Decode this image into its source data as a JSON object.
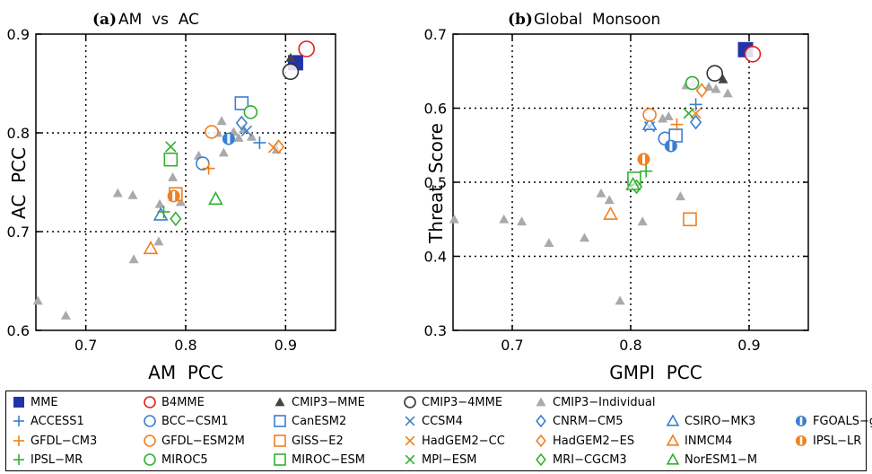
{
  "models": [
    {
      "name": "MME",
      "marker": "square-filled",
      "color": "#2233aa"
    },
    {
      "name": "B4MME",
      "marker": "circle",
      "color": "#e02020"
    },
    {
      "name": "CMIP3−MME",
      "marker": "triangle-filled",
      "color": "#444444"
    },
    {
      "name": "CMIP3−4MME",
      "marker": "circle",
      "color": "#333333"
    },
    {
      "name": "CMIP3−Individual",
      "marker": "triangle-filled",
      "color": "#aaaaaa"
    },
    {
      "name": "ACCESS1",
      "marker": "plus",
      "color": "#3a7fd0"
    },
    {
      "name": "BCC−CSM1",
      "marker": "circle",
      "color": "#3a7fd0"
    },
    {
      "name": "CanESM2",
      "marker": "square",
      "color": "#3a7fd0"
    },
    {
      "name": "CCSM4",
      "marker": "cross",
      "color": "#3a7fd0"
    },
    {
      "name": "CNRM−CM5",
      "marker": "diamond",
      "color": "#3a7fd0"
    },
    {
      "name": "CSIRO−MK3",
      "marker": "triangle",
      "color": "#3a7fd0"
    },
    {
      "name": "FGOALS−g2",
      "marker": "halfcircle",
      "color": "#3a7fd0"
    },
    {
      "name": "GFDL−CM3",
      "marker": "plus",
      "color": "#f08020"
    },
    {
      "name": "GFDL−ESM2M",
      "marker": "circle",
      "color": "#f08020"
    },
    {
      "name": "GISS−E2",
      "marker": "square",
      "color": "#f08020"
    },
    {
      "name": "HadGEM2−CC",
      "marker": "cross",
      "color": "#f08020"
    },
    {
      "name": "HadGEM2−ES",
      "marker": "diamond",
      "color": "#f08020"
    },
    {
      "name": "INMCM4",
      "marker": "triangle",
      "color": "#f08020"
    },
    {
      "name": "IPSL−LR",
      "marker": "halfcircle",
      "color": "#f08020"
    },
    {
      "name": "IPSL−MR",
      "marker": "plus",
      "color": "#30b030"
    },
    {
      "name": "MIROC5",
      "marker": "circle",
      "color": "#30b030"
    },
    {
      "name": "MIROC−ESM",
      "marker": "square",
      "color": "#30b030"
    },
    {
      "name": "MPI−ESM",
      "marker": "cross",
      "color": "#30b030"
    },
    {
      "name": "MRI−CGCM3",
      "marker": "diamond",
      "color": "#30b030"
    },
    {
      "name": "NorESM1−M",
      "marker": "triangle",
      "color": "#30b030"
    }
  ],
  "chart_data": [
    {
      "type": "scatter",
      "panel_label": "(a)",
      "title": "AM  vs  AC",
      "xlabel": "AM  PCC",
      "ylabel": "AC  PCC",
      "xlim": [
        0.65,
        0.95
      ],
      "ylim": [
        0.6,
        0.9
      ],
      "xticks": [
        0.7,
        0.8,
        0.9
      ],
      "yticks": [
        0.6,
        0.7,
        0.8,
        0.9
      ],
      "gridlines_x": [
        0.7,
        0.8,
        0.9
      ],
      "gridlines_y": [
        0.7,
        0.8
      ],
      "points": [
        {
          "model": "MME",
          "x": 0.91,
          "y": 0.871
        },
        {
          "model": "B4MME",
          "x": 0.921,
          "y": 0.885
        },
        {
          "model": "CMIP3−MME",
          "x": 0.905,
          "y": 0.876
        },
        {
          "model": "CMIP3−4MME",
          "x": 0.905,
          "y": 0.862
        },
        {
          "model": "ACCESS1",
          "x": 0.874,
          "y": 0.79
        },
        {
          "model": "BCC−CSM1",
          "x": 0.817,
          "y": 0.769
        },
        {
          "model": "CanESM2",
          "x": 0.856,
          "y": 0.83
        },
        {
          "model": "CCSM4",
          "x": 0.861,
          "y": 0.802
        },
        {
          "model": "CNRM−CM5",
          "x": 0.856,
          "y": 0.81
        },
        {
          "model": "CSIRO−MK3",
          "x": 0.775,
          "y": 0.717
        },
        {
          "model": "FGOALS−g2",
          "x": 0.843,
          "y": 0.794
        },
        {
          "model": "GFDL−CM3",
          "x": 0.823,
          "y": 0.764
        },
        {
          "model": "GFDL−ESM2M",
          "x": 0.826,
          "y": 0.801
        },
        {
          "model": "GISS−E2",
          "x": 0.79,
          "y": 0.738
        },
        {
          "model": "HadGEM2−CC",
          "x": 0.888,
          "y": 0.785
        },
        {
          "model": "HadGEM2−ES",
          "x": 0.893,
          "y": 0.786
        },
        {
          "model": "INMCM4",
          "x": 0.765,
          "y": 0.683
        },
        {
          "model": "IPSL−LR",
          "x": 0.788,
          "y": 0.736
        },
        {
          "model": "IPSL−MR",
          "x": 0.778,
          "y": 0.72
        },
        {
          "model": "MIROC5",
          "x": 0.865,
          "y": 0.821
        },
        {
          "model": "MIROC−ESM",
          "x": 0.785,
          "y": 0.773
        },
        {
          "model": "MPI−ESM",
          "x": 0.785,
          "y": 0.786
        },
        {
          "model": "MRI−CGCM3",
          "x": 0.79,
          "y": 0.713
        },
        {
          "model": "NorESM1−M",
          "x": 0.83,
          "y": 0.733
        },
        {
          "model": "CMIP3−Individual",
          "x": 0.652,
          "y": 0.63
        },
        {
          "model": "CMIP3−Individual",
          "x": 0.68,
          "y": 0.615
        },
        {
          "model": "CMIP3−Individual",
          "x": 0.732,
          "y": 0.739
        },
        {
          "model": "CMIP3−Individual",
          "x": 0.747,
          "y": 0.737
        },
        {
          "model": "CMIP3−Individual",
          "x": 0.748,
          "y": 0.672
        },
        {
          "model": "CMIP3−Individual",
          "x": 0.773,
          "y": 0.69
        },
        {
          "model": "CMIP3−Individual",
          "x": 0.774,
          "y": 0.728
        },
        {
          "model": "CMIP3−Individual",
          "x": 0.787,
          "y": 0.755
        },
        {
          "model": "CMIP3−Individual",
          "x": 0.795,
          "y": 0.73
        },
        {
          "model": "CMIP3−Individual",
          "x": 0.813,
          "y": 0.777
        },
        {
          "model": "CMIP3−Individual",
          "x": 0.832,
          "y": 0.8
        },
        {
          "model": "CMIP3−Individual",
          "x": 0.836,
          "y": 0.812
        },
        {
          "model": "CMIP3−Individual",
          "x": 0.838,
          "y": 0.78
        },
        {
          "model": "CMIP3−Individual",
          "x": 0.848,
          "y": 0.801
        },
        {
          "model": "CMIP3−Individual",
          "x": 0.853,
          "y": 0.795
        },
        {
          "model": "CMIP3−Individual",
          "x": 0.858,
          "y": 0.804
        },
        {
          "model": "CMIP3−Individual",
          "x": 0.866,
          "y": 0.796
        },
        {
          "model": "CMIP3−Individual",
          "x": 0.891,
          "y": 0.783
        }
      ]
    },
    {
      "type": "scatter",
      "panel_label": "(b)",
      "title": "Global  Monsoon",
      "xlabel": "GMPI  PCC",
      "ylabel": "Threat  Score",
      "xlim": [
        0.65,
        0.95
      ],
      "ylim": [
        0.3,
        0.7
      ],
      "xticks": [
        0.7,
        0.8,
        0.9
      ],
      "yticks": [
        0.3,
        0.4,
        0.5,
        0.6,
        0.7
      ],
      "gridlines_x": [
        0.7,
        0.8,
        0.9
      ],
      "gridlines_y": [
        0.4,
        0.5,
        0.6
      ],
      "points": [
        {
          "model": "MME",
          "x": 0.897,
          "y": 0.679
        },
        {
          "model": "B4MME",
          "x": 0.903,
          "y": 0.673
        },
        {
          "model": "CMIP3−MME",
          "x": 0.878,
          "y": 0.639
        },
        {
          "model": "CMIP3−4MME",
          "x": 0.871,
          "y": 0.647
        },
        {
          "model": "ACCESS1",
          "x": 0.855,
          "y": 0.605
        },
        {
          "model": "BCC−CSM1",
          "x": 0.829,
          "y": 0.559
        },
        {
          "model": "CanESM2",
          "x": 0.838,
          "y": 0.563
        },
        {
          "model": "CCSM4",
          "x": 0.816,
          "y": 0.575
        },
        {
          "model": "CNRM−CM5",
          "x": 0.855,
          "y": 0.581
        },
        {
          "model": "CSIRO−MK3",
          "x": 0.816,
          "y": 0.578
        },
        {
          "model": "FGOALS−g2",
          "x": 0.834,
          "y": 0.549
        },
        {
          "model": "GFDL−CM3",
          "x": 0.839,
          "y": 0.578
        },
        {
          "model": "GFDL−ESM2M",
          "x": 0.816,
          "y": 0.591
        },
        {
          "model": "GISS−E2",
          "x": 0.85,
          "y": 0.45
        },
        {
          "model": "HadGEM2−CC",
          "x": 0.855,
          "y": 0.593
        },
        {
          "model": "HadGEM2−ES",
          "x": 0.86,
          "y": 0.624
        },
        {
          "model": "INMCM4",
          "x": 0.783,
          "y": 0.457
        },
        {
          "model": "IPSL−LR",
          "x": 0.811,
          "y": 0.531
        },
        {
          "model": "IPSL−MR",
          "x": 0.813,
          "y": 0.515
        },
        {
          "model": "MIROC5",
          "x": 0.852,
          "y": 0.634
        },
        {
          "model": "MIROC−ESM",
          "x": 0.803,
          "y": 0.505
        },
        {
          "model": "MPI−ESM",
          "x": 0.849,
          "y": 0.593
        },
        {
          "model": "MRI−CGCM3",
          "x": 0.805,
          "y": 0.494
        },
        {
          "model": "NorESM1−M",
          "x": 0.802,
          "y": 0.497
        },
        {
          "model": "CMIP3−Individual",
          "x": 0.651,
          "y": 0.45
        },
        {
          "model": "CMIP3−Individual",
          "x": 0.693,
          "y": 0.45
        },
        {
          "model": "CMIP3−Individual",
          "x": 0.708,
          "y": 0.447
        },
        {
          "model": "CMIP3−Individual",
          "x": 0.731,
          "y": 0.418
        },
        {
          "model": "CMIP3−Individual",
          "x": 0.761,
          "y": 0.425
        },
        {
          "model": "CMIP3−Individual",
          "x": 0.775,
          "y": 0.485
        },
        {
          "model": "CMIP3−Individual",
          "x": 0.782,
          "y": 0.476
        },
        {
          "model": "CMIP3−Individual",
          "x": 0.791,
          "y": 0.34
        },
        {
          "model": "CMIP3−Individual",
          "x": 0.81,
          "y": 0.447
        },
        {
          "model": "CMIP3−Individual",
          "x": 0.827,
          "y": 0.586
        },
        {
          "model": "CMIP3−Individual",
          "x": 0.832,
          "y": 0.589
        },
        {
          "model": "CMIP3−Individual",
          "x": 0.842,
          "y": 0.481
        },
        {
          "model": "CMIP3−Individual",
          "x": 0.847,
          "y": 0.631
        },
        {
          "model": "CMIP3−Individual",
          "x": 0.853,
          "y": 0.634
        },
        {
          "model": "CMIP3−Individual",
          "x": 0.866,
          "y": 0.629
        },
        {
          "model": "CMIP3−Individual",
          "x": 0.872,
          "y": 0.626
        },
        {
          "model": "CMIP3−Individual",
          "x": 0.882,
          "y": 0.62
        }
      ]
    }
  ]
}
